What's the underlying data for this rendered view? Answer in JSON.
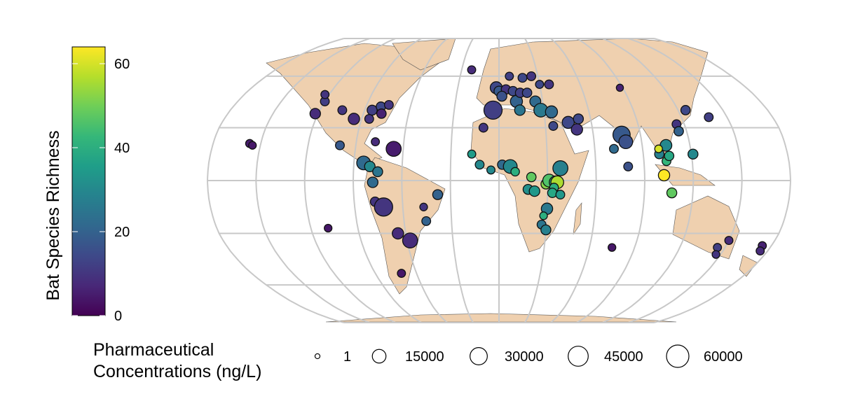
{
  "chart_data": {
    "type": "bubble-map",
    "color_legend": {
      "title": "Bat Species Richness",
      "clim": [
        0,
        64
      ],
      "ticks": [
        0,
        20,
        40,
        60
      ]
    },
    "size_legend": {
      "title": "Pharmaceutical Concentrations (ng/L)",
      "values": [
        1,
        15000,
        30000,
        45000,
        60000
      ]
    },
    "points": {
      "lon": [
        -120,
        -122,
        -105,
        -95,
        -85,
        -80,
        -75,
        -78,
        -85,
        -123,
        -100,
        -157,
        -155,
        -78,
        -66,
        -84,
        -80,
        -75,
        -78,
        -77,
        -72,
        -47,
        -38,
        -46,
        -65,
        -58,
        -71,
        -109,
        -2,
        0,
        5,
        10,
        2,
        -4,
        12,
        15,
        20,
        25,
        18,
        25,
        30,
        37,
        14,
        28,
        35,
        -22,
        8,
        45,
        50,
        52,
        35,
        78,
        80,
        72,
        80,
        100,
        105,
        104,
        102,
        121,
        125,
        138,
        115,
        88,
        115,
        107,
        100,
        106,
        -17,
        -12,
        -5,
        2,
        7,
        10,
        20,
        29,
        31,
        35,
        36,
        38,
        34,
        30,
        27,
        30,
        28,
        18,
        22,
        33,
        -10,
        38,
        150,
        145,
        174,
        175,
        147,
        75
      ],
      "lat": [
        45,
        38,
        40,
        35,
        40,
        42,
        43,
        38,
        35,
        49,
        20,
        21,
        20,
        22,
        18,
        10,
        8,
        5,
        -1,
        -12,
        -15,
        -15,
        -8,
        -23,
        -30,
        -34,
        -53,
        -27,
        53,
        51,
        52,
        51,
        48,
        40,
        45,
        50,
        50,
        45,
        59,
        60,
        55,
        55,
        40,
        40,
        39,
        64,
        60,
        33,
        29,
        35,
        31,
        26,
        22,
        18,
        8,
        15,
        20,
        11,
        3,
        15,
        40,
        36,
        32,
        53,
        28,
        -7,
        18,
        14,
        15,
        9,
        6,
        9,
        8,
        5,
        2,
        -2,
        0,
        -1,
        -1,
        7,
        -4,
        -16,
        -25,
        -28,
        -20,
        -5,
        -6,
        -7,
        30,
        -8,
        -34,
        -38,
        -37,
        -40,
        -42,
        -38
      ],
      "richness": [
        12,
        8,
        10,
        8,
        12,
        14,
        10,
        6,
        10,
        10,
        18,
        5,
        4,
        8,
        5,
        22,
        30,
        25,
        22,
        10,
        10,
        10,
        20,
        20,
        8,
        8,
        4,
        4,
        14,
        18,
        10,
        14,
        16,
        12,
        20,
        12,
        14,
        22,
        14,
        10,
        14,
        10,
        25,
        26,
        22,
        8,
        12,
        14,
        10,
        14,
        14,
        18,
        16,
        22,
        16,
        28,
        30,
        42,
        64,
        30,
        14,
        12,
        10,
        6,
        20,
        48,
        60,
        38,
        35,
        30,
        30,
        22,
        30,
        40,
        48,
        52,
        46,
        40,
        56,
        28,
        40,
        26,
        25,
        28,
        40,
        32,
        34,
        38,
        10,
        34,
        8,
        12,
        6,
        8,
        10,
        4
      ],
      "concentration": [
        3000,
        6000,
        3000,
        8000,
        5000,
        4000,
        3000,
        4000,
        3000,
        2000,
        3000,
        2000,
        1500,
        2000,
        20000,
        15000,
        6000,
        5000,
        6000,
        4000,
        35000,
        1500,
        5000,
        3000,
        8000,
        20000,
        2000,
        1500,
        10000,
        5000,
        4000,
        4000,
        5000,
        35000,
        10000,
        4000,
        4000,
        7000,
        3000,
        3000,
        2000,
        3000,
        6000,
        15000,
        10000,
        2000,
        2000,
        10000,
        8000,
        5000,
        3000,
        30000,
        15000,
        3000,
        3000,
        4000,
        9000,
        3000,
        8000,
        5000,
        4000,
        3000,
        3000,
        1000,
        4000,
        5000,
        1500,
        4000,
        2000,
        3000,
        2000,
        4000,
        15000,
        2500,
        4000,
        5000,
        12000,
        12000,
        12000,
        20000,
        3000,
        8000,
        3000,
        5000,
        1500,
        5000,
        6000,
        4000,
        3000,
        3000,
        2000,
        2000,
        2000,
        2000,
        1500,
        1500
      ]
    }
  }
}
